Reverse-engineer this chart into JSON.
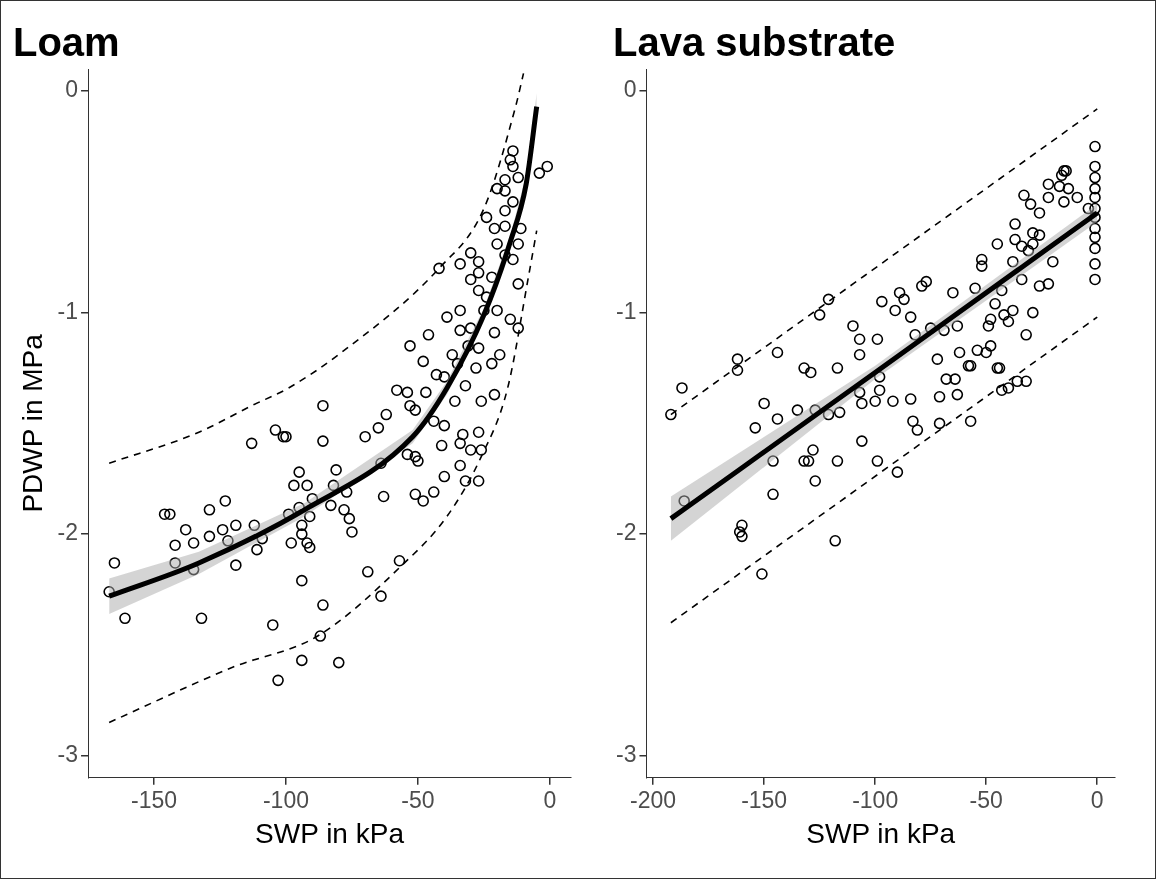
{
  "chart_data": [
    {
      "type": "scatter",
      "title": "Loam",
      "xlabel": "SWP in kPa",
      "ylabel": "PDWP in MPa",
      "xlim": [
        -175,
        8
      ],
      "ylim": [
        -3.1,
        0.1
      ],
      "xticks": [
        -150,
        -100,
        -50,
        0
      ],
      "yticks": [
        0,
        -1,
        -2,
        -3
      ],
      "series": [
        {
          "marker": "circle",
          "color": "#000000",
          "x": [
            -14,
            -15,
            -14,
            -1,
            -4,
            -12,
            -17,
            -20,
            -17,
            -14,
            -17,
            -24,
            -21,
            -17,
            -11,
            -20,
            -17,
            -12,
            -14,
            -30,
            -34,
            -27,
            -42,
            -27,
            -30,
            -22,
            -12,
            -27,
            -24,
            -34,
            -39,
            -25,
            -20,
            -15,
            -12,
            -46,
            -34,
            -30,
            -21,
            -53,
            -37,
            -31,
            -27,
            -48,
            -35,
            -19,
            -22,
            -28,
            -43,
            -40,
            -58,
            -54,
            -47,
            -32,
            -21,
            -36,
            -26,
            -86,
            -53,
            -104,
            -101,
            -100,
            -113,
            -86,
            -70,
            -65,
            -62,
            -51,
            -44,
            -40,
            -54,
            -51,
            -50,
            -41,
            -34,
            -30,
            -26,
            -27,
            -33,
            -34,
            -40,
            -32,
            -27,
            -44,
            -51,
            -48,
            -63,
            -64,
            -81,
            -95,
            -97,
            -92,
            -82,
            -77,
            -90,
            -83,
            -95,
            -78,
            -76,
            -75,
            -91,
            -94,
            -94,
            -92,
            -91,
            -98,
            -99,
            -111,
            -109,
            -112,
            -119,
            -124,
            -123,
            -129,
            -129,
            -135,
            -138,
            -142,
            -146,
            -144,
            -122,
            -119,
            -142,
            -135,
            -165,
            -167,
            -161,
            -132,
            -105,
            -94,
            -86,
            -87,
            -94,
            -80,
            -103,
            -69,
            -57,
            -64
          ],
          "values": [
            -0.27,
            -0.31,
            -0.34,
            -0.34,
            -0.37,
            -0.39,
            -0.4,
            -0.44,
            -0.45,
            -0.5,
            -0.54,
            -0.57,
            -0.62,
            -0.61,
            -0.62,
            -0.69,
            -0.74,
            -0.69,
            -0.76,
            -0.73,
            -0.78,
            -0.77,
            -0.8,
            -0.82,
            -0.85,
            -0.84,
            -0.87,
            -0.9,
            -0.93,
            -0.99,
            -1.02,
            -0.99,
            -0.99,
            -1.03,
            -1.07,
            -1.1,
            -1.08,
            -1.07,
            -1.09,
            -1.15,
            -1.19,
            -1.15,
            -1.16,
            -1.22,
            -1.23,
            -1.19,
            -1.23,
            -1.25,
            -1.28,
            -1.29,
            -1.35,
            -1.36,
            -1.36,
            -1.33,
            -1.37,
            -1.4,
            -1.4,
            -1.42,
            -1.42,
            -1.53,
            -1.56,
            -1.56,
            -1.59,
            -1.58,
            -1.56,
            -1.52,
            -1.46,
            -1.44,
            -1.49,
            -1.51,
            -1.64,
            -1.65,
            -1.67,
            -1.6,
            -1.59,
            -1.62,
            -1.62,
            -1.54,
            -1.55,
            -1.69,
            -1.74,
            -1.76,
            -1.76,
            -1.81,
            -1.82,
            -1.85,
            -1.83,
            -1.68,
            -1.71,
            -1.72,
            -1.78,
            -1.78,
            -1.78,
            -1.81,
            -1.84,
            -1.87,
            -1.88,
            -1.89,
            -1.93,
            -1.99,
            -1.92,
            -1.96,
            -2.0,
            -2.04,
            -2.06,
            -2.04,
            -1.91,
            -2.07,
            -2.02,
            -1.96,
            -1.96,
            -1.98,
            -1.85,
            -1.89,
            -2.01,
            -2.04,
            -1.98,
            -2.05,
            -1.91,
            -1.91,
            -2.03,
            -2.14,
            -2.13,
            -2.16,
            -2.13,
            -2.26,
            -2.38,
            -2.38,
            -2.41,
            -2.21,
            -2.32,
            -2.46,
            -2.57,
            -2.58,
            -2.66,
            -2.17,
            -2.12,
            -2.28
          ]
        },
        {
          "type": "line",
          "color": "#000000",
          "x": [
            -167,
            -133,
            -93,
            -52,
            -39,
            -25,
            -15,
            -9,
            -5
          ],
          "values": [
            -2.28,
            -2.13,
            -1.89,
            -1.56,
            -1.34,
            -1.01,
            -0.68,
            -0.42,
            -0.07
          ],
          "lower": [
            -2.36,
            -2.18,
            -1.92,
            -1.59,
            -1.37,
            -1.04,
            -0.71,
            -0.46,
            -0.13
          ],
          "upper": [
            -2.2,
            -2.08,
            -1.86,
            -1.53,
            -1.31,
            -0.98,
            -0.65,
            -0.38,
            -0.01
          ]
        },
        {
          "type": "line",
          "color": "#000000",
          "line_style": "dashed",
          "x": [
            -167,
            -133,
            -113,
            -99,
            -79,
            -42,
            -25,
            -13,
            -10
          ],
          "values": [
            -1.68,
            -1.54,
            -1.42,
            -1.34,
            -1.18,
            -0.8,
            -0.53,
            -0.07,
            0.08
          ]
        },
        {
          "type": "line",
          "color": "#000000",
          "line_style": "dashed",
          "x": [
            -167,
            -120,
            -88,
            -56,
            -39,
            -26,
            -16,
            -8,
            -5
          ],
          "values": [
            -2.85,
            -2.6,
            -2.46,
            -2.14,
            -1.92,
            -1.65,
            -1.34,
            -0.83,
            -0.63
          ]
        }
      ]
    },
    {
      "type": "scatter",
      "title": "Lava substrate",
      "xlabel": "SWP in kPa",
      "xlim": [
        -203,
        8
      ],
      "ylim": [
        -3.1,
        0.1
      ],
      "xticks": [
        -200,
        -150,
        -100,
        -50,
        0
      ],
      "yticks": [
        0,
        -1,
        -2,
        -3
      ],
      "series": [
        {
          "marker": "circle",
          "color": "#000000",
          "x": [
            -1,
            -1,
            -1,
            -1,
            -1,
            -1,
            -1,
            -1,
            -1,
            -1,
            -1,
            -1,
            -15,
            -14,
            -16,
            -22,
            -17,
            -13,
            -9,
            -15,
            -22,
            -33,
            -4,
            -30,
            -26,
            -37,
            -29,
            -26,
            -37,
            -45,
            -34,
            -29,
            -31,
            -52,
            -52,
            -38,
            -20,
            -77,
            -79,
            -89,
            -65,
            -55,
            -43,
            -34,
            -26,
            -22,
            -97,
            -87,
            -91,
            -84,
            -110,
            -107,
            -99,
            -107,
            -121,
            -125,
            -144,
            -162,
            -162,
            -132,
            -129,
            -117,
            -187,
            -75,
            -63,
            -46,
            -42,
            -38,
            -40,
            -29,
            -48,
            -49,
            -32,
            -48,
            -50,
            -54,
            -62,
            -58,
            -45,
            -72,
            -68,
            -32,
            -40,
            -82,
            -69,
            -192,
            -150,
            -154,
            -144,
            -135,
            -127,
            -121,
            -116,
            -107,
            -98,
            -98,
            -106,
            -100,
            -92,
            -84,
            -71,
            -63,
            -64,
            -57,
            -44,
            -36,
            -43,
            -83,
            -81,
            -71,
            -57,
            -106,
            -128,
            -132,
            -130,
            -117,
            -99,
            -90,
            -146,
            -146,
            -127,
            -186,
            -160,
            -161,
            -160,
            -118,
            -151
          ],
          "values": [
            -0.25,
            -0.34,
            -0.39,
            -0.44,
            -0.48,
            -0.53,
            -0.57,
            -0.62,
            -0.66,
            -0.71,
            -0.78,
            -0.85,
            -0.36,
            -0.36,
            -0.38,
            -0.42,
            -0.43,
            -0.44,
            -0.48,
            -0.5,
            -0.48,
            -0.47,
            -0.53,
            -0.51,
            -0.55,
            -0.6,
            -0.64,
            -0.65,
            -0.67,
            -0.69,
            -0.7,
            -0.69,
            -0.72,
            -0.76,
            -0.79,
            -0.77,
            -0.77,
            -0.86,
            -0.88,
            -0.91,
            -0.91,
            -0.89,
            -0.9,
            -0.85,
            -0.88,
            -0.87,
            -0.95,
            -0.94,
            -0.99,
            -1.02,
            -1.06,
            -1.12,
            -1.12,
            -1.19,
            -0.94,
            -1.01,
            -1.18,
            -1.21,
            -1.26,
            -1.25,
            -1.27,
            -1.25,
            -1.34,
            -1.07,
            -1.06,
            -0.96,
            -1.01,
            -0.99,
            -1.04,
            -1.0,
            -1.03,
            -1.06,
            -1.1,
            -1.15,
            -1.18,
            -1.17,
            -1.18,
            -1.24,
            -1.25,
            -1.21,
            -1.3,
            -1.31,
            -1.34,
            -1.1,
            -1.08,
            -1.46,
            -1.41,
            -1.52,
            -1.48,
            -1.44,
            -1.44,
            -1.46,
            -1.45,
            -1.36,
            -1.35,
            -1.29,
            -1.41,
            -1.4,
            -1.4,
            -1.39,
            -1.38,
            -1.37,
            -1.3,
            -1.24,
            -1.25,
            -1.31,
            -1.35,
            -1.49,
            -1.53,
            -1.5,
            -1.49,
            -1.58,
            -1.62,
            -1.67,
            -1.67,
            -1.67,
            -1.67,
            -1.72,
            -1.67,
            -1.82,
            -1.76,
            -1.85,
            -1.96,
            -1.99,
            -2.01,
            -2.03,
            -2.18
          ]
        },
        {
          "type": "line",
          "color": "#000000",
          "x": [
            -192,
            -100,
            0
          ],
          "values": [
            -1.93,
            -1.27,
            -0.55
          ],
          "lower": [
            -2.03,
            -1.3,
            -0.59
          ],
          "upper": [
            -1.83,
            -1.24,
            -0.51
          ]
        },
        {
          "type": "line",
          "color": "#000000",
          "line_style": "dashed",
          "x": [
            -192,
            0
          ],
          "values": [
            -1.46,
            -0.08
          ]
        },
        {
          "type": "line",
          "color": "#000000",
          "line_style": "dashed",
          "x": [
            -192,
            0
          ],
          "values": [
            -2.4,
            -1.02
          ]
        }
      ]
    }
  ]
}
